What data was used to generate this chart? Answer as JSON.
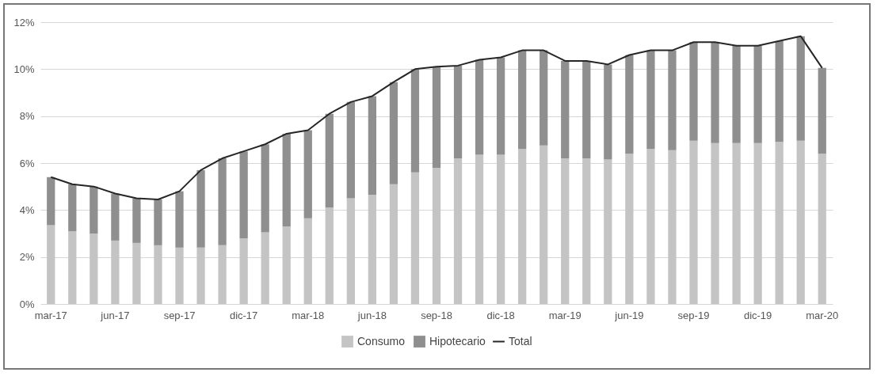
{
  "chart_data": {
    "type": "bar",
    "stacked": true,
    "categories": [
      "mar-17",
      null,
      null,
      "jun-17",
      null,
      null,
      "sep-17",
      null,
      null,
      "dic-17",
      null,
      null,
      "mar-18",
      null,
      null,
      "jun-18",
      null,
      null,
      "sep-18",
      null,
      null,
      "dic-18",
      null,
      null,
      "mar-19",
      null,
      null,
      "jun-19",
      null,
      null,
      "sep-19",
      null,
      null,
      "dic-19",
      null,
      null,
      "mar-20"
    ],
    "series": [
      {
        "name": "Consumo",
        "color": "#c4c4c4",
        "values": [
          3.35,
          3.1,
          3.0,
          2.7,
          2.6,
          2.5,
          2.4,
          2.4,
          2.5,
          2.8,
          3.05,
          3.3,
          3.65,
          4.1,
          4.5,
          4.65,
          5.1,
          5.6,
          5.8,
          6.2,
          6.35,
          6.35,
          6.6,
          6.75,
          6.2,
          6.2,
          6.15,
          6.4,
          6.6,
          6.55,
          6.95,
          6.85,
          6.85,
          6.85,
          6.9,
          6.95,
          6.4
        ]
      },
      {
        "name": "Hipotecario",
        "color": "#8f8f8f",
        "values": [
          2.05,
          2.0,
          2.0,
          2.0,
          1.9,
          1.95,
          2.4,
          3.3,
          3.7,
          3.7,
          3.75,
          3.95,
          3.75,
          4.0,
          4.1,
          4.2,
          4.35,
          4.4,
          4.3,
          3.95,
          4.05,
          4.15,
          4.2,
          4.05,
          4.15,
          4.15,
          4.05,
          4.2,
          4.2,
          4.25,
          4.2,
          4.3,
          4.15,
          4.15,
          4.3,
          4.45,
          3.65
        ]
      },
      {
        "name": "Total",
        "type": "line",
        "color": "#262626",
        "values": [
          5.4,
          5.1,
          5.0,
          4.7,
          4.5,
          4.45,
          4.8,
          5.7,
          6.2,
          6.5,
          6.8,
          7.25,
          7.4,
          8.1,
          8.6,
          8.85,
          9.45,
          10.0,
          10.1,
          10.15,
          10.4,
          10.5,
          10.8,
          10.8,
          10.35,
          10.35,
          10.2,
          10.6,
          10.8,
          10.8,
          11.15,
          11.15,
          11.0,
          11.0,
          11.2,
          11.4,
          10.05
        ]
      }
    ],
    "ylim": [
      0,
      12
    ],
    "yticks": [
      {
        "value": 0,
        "label": "0%"
      },
      {
        "value": 2,
        "label": "2%"
      },
      {
        "value": 4,
        "label": "4%"
      },
      {
        "value": 6,
        "label": "6%"
      },
      {
        "value": 8,
        "label": "8%"
      },
      {
        "value": 10,
        "label": "10%"
      },
      {
        "value": 12,
        "label": "12%"
      }
    ],
    "grid": "y",
    "legend": "bottom"
  }
}
